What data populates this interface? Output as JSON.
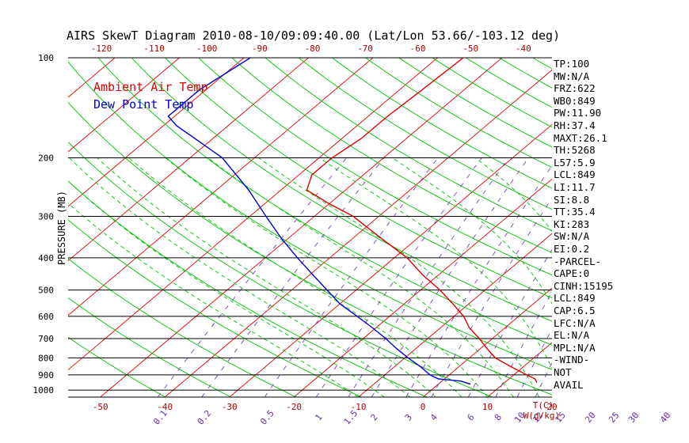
{
  "title": "AIRS SkewT Diagram 2010-08-10/09:09:40.00 (Lat/Lon 53.66/-103.12 deg)",
  "colors": {
    "temp": "#e00000",
    "dewpoint": "#0000d0",
    "isotherm": "#e00000",
    "dry_adiabat": "#00c000",
    "moist_adiabat": "#00c000",
    "mixing_ratio": "#7a3fb5",
    "isobar": "#000000",
    "axis_label_color": "#b00000",
    "mixing_label_color": "#6a2fa5"
  },
  "chart_data": {
    "type": "line",
    "subtype": "skew-t log-p",
    "title": "AIRS SkewT Diagram 2010-08-10/09:09:40.00 (Lat/Lon 53.66/-103.12 deg)",
    "ylabel": "PRESSURE (MB)",
    "xlabel": "T(C)",
    "mixing_ratio_axis_label": "W(g/kg)",
    "y_scale": "log",
    "ylim": [
      1050,
      100
    ],
    "bottom_temp_range": [
      -55,
      20
    ],
    "pressure_ticks": [
      100,
      200,
      300,
      400,
      500,
      600,
      700,
      800,
      900,
      1000
    ],
    "bottom_temp_ticks": [
      -50,
      -40,
      -30,
      -20,
      -10,
      0,
      10,
      20
    ],
    "bottom_temp_tick_labels": [
      "-50",
      "-40",
      "-30",
      "-20",
      "-10",
      "0",
      "10",
      "20"
    ],
    "top_temp_ticks": [
      -120,
      -110,
      -100,
      -90,
      -80,
      -70,
      -60,
      -50,
      -40
    ],
    "mixing_ratio_ticks": [
      0.1,
      0.2,
      0.5,
      1,
      1.5,
      2,
      3,
      4,
      6,
      8,
      10,
      12,
      15,
      20,
      25,
      30,
      40
    ],
    "mixing_ratio_labels": [
      "0.1",
      "0.2",
      "0.5",
      "1",
      "1.5",
      "2",
      "3",
      "4",
      "6",
      "8",
      "10",
      "12",
      "15",
      "20",
      "25",
      "30",
      "40"
    ],
    "legend": [
      "Ambient Air Temp",
      "Dew Point Temp"
    ],
    "legend_placement": "top-left",
    "series": [
      {
        "name": "Ambient Air Temp",
        "p": [
          950,
          925,
          900,
          850,
          800,
          750,
          700,
          650,
          600,
          550,
          500,
          450,
          400,
          350,
          300,
          275,
          250,
          225,
          200,
          175,
          150,
          125,
          100
        ],
        "t": [
          15,
          14,
          12,
          8,
          4,
          1,
          -2,
          -5.5,
          -8.5,
          -12.5,
          -17,
          -22.5,
          -28,
          -35.5,
          -44,
          -50,
          -56,
          -58,
          -58,
          -57,
          -57,
          -56.5,
          -56
        ]
      },
      {
        "name": "Dew Point Temp",
        "p": [
          960,
          940,
          925,
          900,
          850,
          800,
          750,
          700,
          650,
          600,
          550,
          500,
          450,
          400,
          350,
          300,
          250,
          200,
          160,
          150,
          125,
          100
        ],
        "t": [
          5,
          3,
          -1,
          -3,
          -6,
          -9.5,
          -13,
          -16.5,
          -20.5,
          -25,
          -30,
          -34.5,
          -39.5,
          -45,
          -51,
          -57.5,
          -65,
          -75,
          -88,
          -91,
          -91,
          -89
        ]
      }
    ]
  },
  "indices": [
    "TP:100",
    "MW:N/A",
    "FRZ:622",
    "WB0:849",
    "PW:11.90",
    "RH:37.4",
    "MAXT:26.1",
    "TH:5268",
    "L57:5.9",
    "LCL:849",
    "LI:11.7",
    "SI:8.8",
    "TT:35.4",
    "KI:283",
    "SW:N/A",
    "EI:0.2",
    "-PARCEL-",
    "CAPE:0",
    "CINH:15195",
    "LCL:849",
    "CAP:6.5",
    "LFC:N/A",
    "EL:N/A",
    "MPL:N/A",
    "-WIND-",
    "NOT",
    "AVAIL"
  ]
}
